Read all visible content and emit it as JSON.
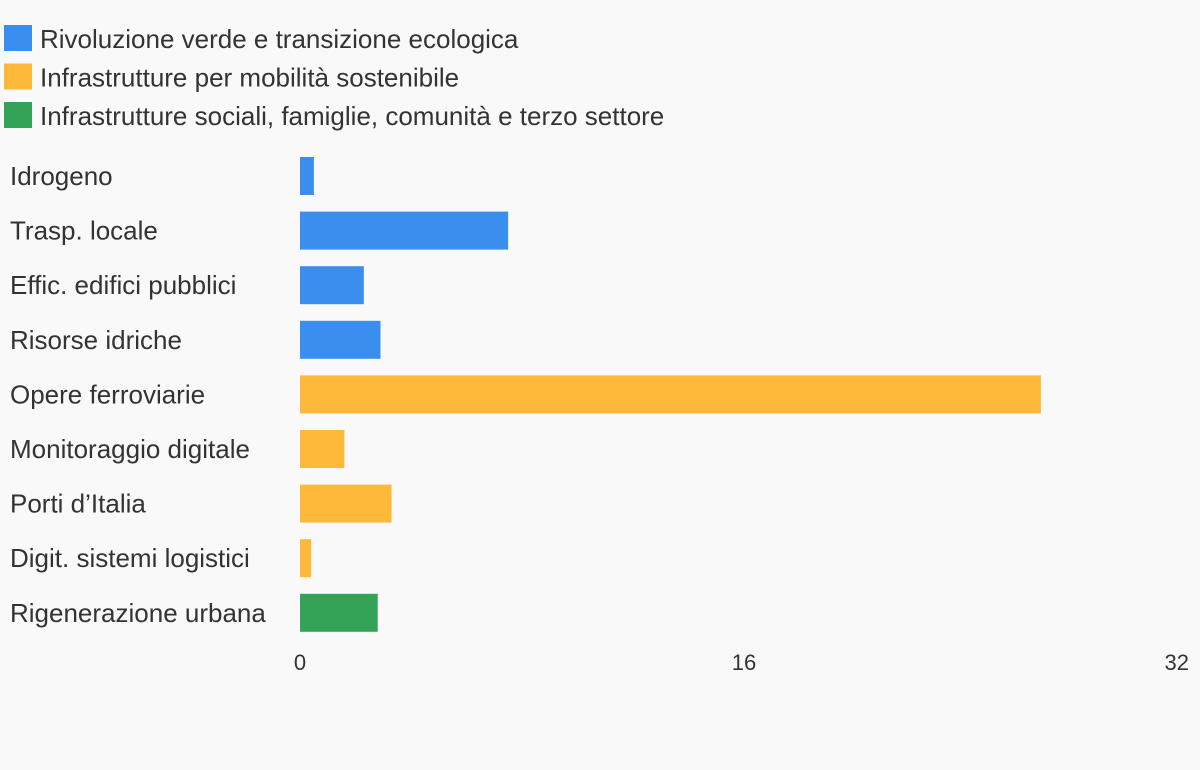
{
  "chart_data": {
    "type": "bar",
    "orientation": "horizontal",
    "title": "",
    "xlabel": "",
    "ylabel": "",
    "xlim": [
      0,
      32
    ],
    "x_ticks": [
      0,
      16,
      32
    ],
    "grid": false,
    "legend_position": "top-left",
    "legend": [
      {
        "name": "Rivoluzione verde e transizione ecologica",
        "color": "#3a8eed"
      },
      {
        "name": "Infrastrutture per mobilità sostenibile",
        "color": "#ffb93a"
      },
      {
        "name": "Infrastrutture sociali, famiglie, comunità e terzo settore",
        "color": "#33a358"
      }
    ],
    "categories": [
      "Idrogeno",
      "Trasp. locale",
      "Effic. edifici pubblici",
      "Risorse idriche",
      "Opere ferroviarie",
      "Monitoraggio digitale",
      "Porti d’Italia",
      "Digit. sistemi logistici",
      "Rigenerazione urbana"
    ],
    "values": [
      0.5,
      7.5,
      2.3,
      2.9,
      26.7,
      1.6,
      3.3,
      0.4,
      2.8
    ],
    "bar_series": [
      0,
      0,
      0,
      0,
      1,
      1,
      1,
      1,
      2
    ]
  }
}
